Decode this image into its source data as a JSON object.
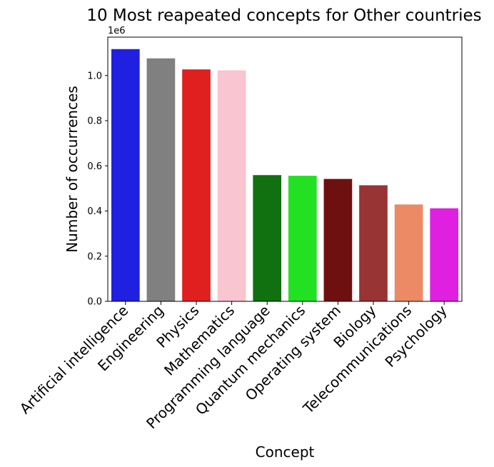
{
  "chart_data": {
    "type": "bar",
    "title": "10 Most reapeated concepts for Other countries",
    "xlabel": "Concept",
    "ylabel": "Number of occurrences",
    "y_offset_text": "1e6",
    "ylim": [
      0,
      1170000
    ],
    "yticks": [
      0,
      200000,
      400000,
      600000,
      800000,
      1000000
    ],
    "ytick_labels": [
      "0.0",
      "0.2",
      "0.4",
      "0.6",
      "0.8",
      "1.0"
    ],
    "grid": false,
    "categories": [
      "Artificial intelligence",
      "Engineering",
      "Physics",
      "Mathematics",
      "Programming language",
      "Quantum mechanics",
      "Operating system",
      "Biology",
      "Telecommunications",
      "Psychology"
    ],
    "values": [
      1117000,
      1076000,
      1027000,
      1023000,
      559000,
      556000,
      542000,
      514000,
      429000,
      412000
    ],
    "colors": [
      "#2020e0",
      "#808080",
      "#e01f1f",
      "#f8c5d0",
      "#117010",
      "#22e022",
      "#6e1010",
      "#983434",
      "#ec8a66",
      "#e020e0"
    ]
  }
}
